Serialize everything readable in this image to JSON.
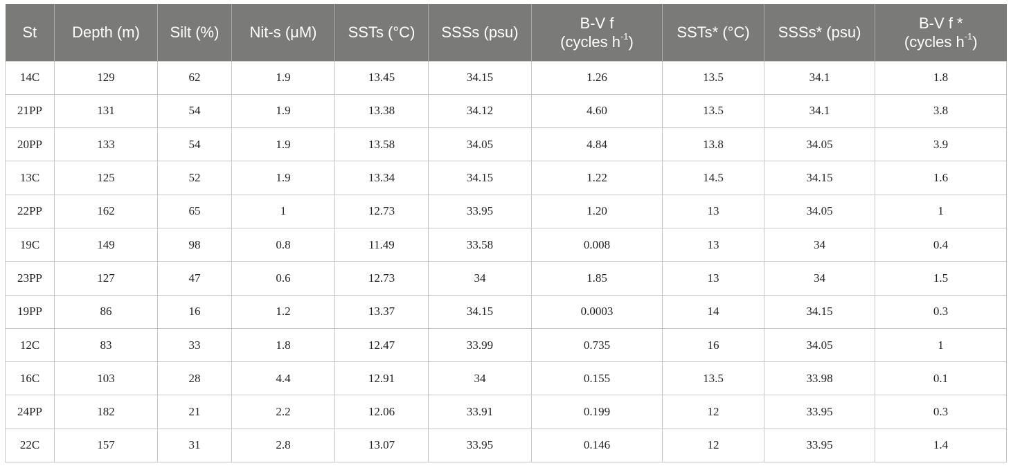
{
  "table": {
    "headers": [
      {
        "line1": "St",
        "line2": ""
      },
      {
        "line1": "Depth (m)",
        "line2": ""
      },
      {
        "line1": "Silt (%)",
        "line2": ""
      },
      {
        "line1": "Nit-s (μM)",
        "line2": ""
      },
      {
        "line1": "SSTs (°C)",
        "line2": ""
      },
      {
        "line1": "SSSs (psu)",
        "line2": ""
      },
      {
        "line1": "B-V f",
        "line2": "(cycles h",
        "sup": "-1",
        "tail": ")"
      },
      {
        "line1": "SSTs* (°C)",
        "line2": ""
      },
      {
        "line1": "SSSs* (psu)",
        "line2": ""
      },
      {
        "line1": "B-V f *",
        "line2": "(cycles h",
        "sup": "-1",
        "tail": ")"
      }
    ],
    "rows": [
      [
        "14C",
        "129",
        "62",
        "1.9",
        "13.45",
        "34.15",
        "1.26",
        "13.5",
        "34.1",
        "1.8"
      ],
      [
        "21PP",
        "131",
        "54",
        "1.9",
        "13.38",
        "34.12",
        "4.60",
        "13.5",
        "34.1",
        "3.8"
      ],
      [
        "20PP",
        "133",
        "54",
        "1.9",
        "13.58",
        "34.05",
        "4.84",
        "13.8",
        "34.05",
        "3.9"
      ],
      [
        "13C",
        "125",
        "52",
        "1.9",
        "13.34",
        "34.15",
        "1.22",
        "14.5",
        "34.15",
        "1.6"
      ],
      [
        "22PP",
        "162",
        "65",
        "1",
        "12.73",
        "33.95",
        "1.20",
        "13",
        "34.05",
        "1"
      ],
      [
        "19C",
        "149",
        "98",
        "0.8",
        "11.49",
        "33.58",
        "0.008",
        "13",
        "34",
        "0.4"
      ],
      [
        "23PP",
        "127",
        "47",
        "0.6",
        "12.73",
        "34",
        "1.85",
        "13",
        "34",
        "1.5"
      ],
      [
        "19PP",
        "86",
        "16",
        "1.2",
        "13.37",
        "34.15",
        "0.0003",
        "14",
        "34.15",
        "0.3"
      ],
      [
        "12C",
        "83",
        "33",
        "1.8",
        "12.47",
        "33.99",
        "0.735",
        "16",
        "34.05",
        "1"
      ],
      [
        "16C",
        "103",
        "28",
        "4.4",
        "12.91",
        "34",
        "0.155",
        "13.5",
        "33.98",
        "0.1"
      ],
      [
        "24PP",
        "182",
        "21",
        "2.2",
        "12.06",
        "33.91",
        "0.199",
        "12",
        "33.95",
        "0.3"
      ],
      [
        "22C",
        "157",
        "31",
        "2.8",
        "13.07",
        "33.95",
        "0.146",
        "12",
        "33.95",
        "1.4"
      ]
    ],
    "colors": {
      "header_background": "#7a7a79",
      "header_text": "#ffffff",
      "grid": "#c6c6c6"
    }
  }
}
